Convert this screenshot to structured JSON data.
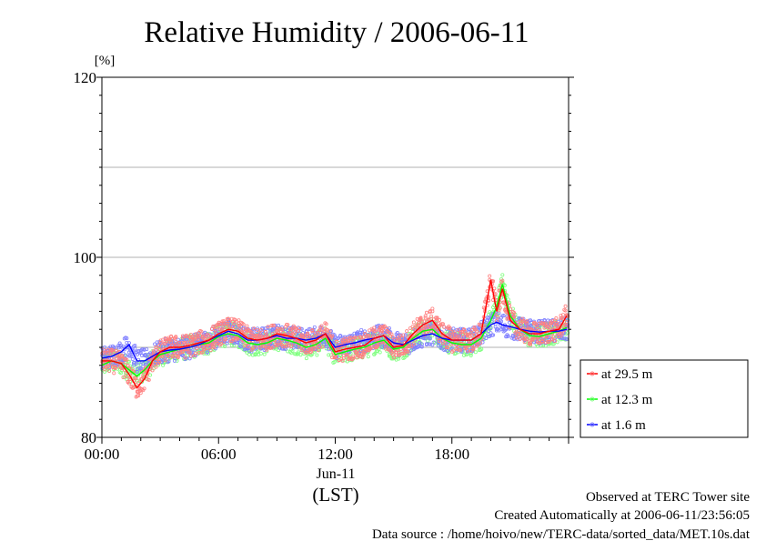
{
  "chart_data": {
    "type": "line",
    "title": "Relative Humidity / 2006-06-11",
    "y_unit": "[%]",
    "ylim": [
      80,
      120
    ],
    "y_ticks": [
      {
        "value": 80,
        "label": "80"
      },
      {
        "value": 100,
        "label": "100"
      },
      {
        "value": 120,
        "label": "120"
      }
    ],
    "y_gridlines": [
      90,
      100,
      110
    ],
    "xlim": [
      0,
      24
    ],
    "x_ticks": [
      {
        "value": 0,
        "label": "00:00"
      },
      {
        "value": 6,
        "label": "06:00"
      },
      {
        "value": 12,
        "label": "12:00"
      },
      {
        "value": 18,
        "label": "18:00"
      }
    ],
    "x_date_label": "Jun-11",
    "x_axis_label": "(LST)",
    "legend_position": "right-bottom",
    "series": [
      {
        "name": "at 29.5 m",
        "color": "#ff0000",
        "scatter_color": "#ff8080",
        "x": [
          0,
          0.5,
          1,
          1.4,
          1.8,
          2.2,
          2.6,
          3,
          3.5,
          4,
          4.5,
          5,
          5.5,
          6,
          6.5,
          7,
          7.5,
          8,
          8.5,
          9,
          9.5,
          10,
          10.5,
          11,
          11.5,
          12,
          12.5,
          13,
          13.5,
          14,
          14.5,
          15,
          15.5,
          16,
          16.5,
          17,
          17.5,
          18,
          18.5,
          19,
          19.5,
          20,
          20.3,
          20.6,
          21,
          21.5,
          22,
          22.5,
          23,
          23.5,
          23.9
        ],
        "y": [
          88.5,
          88.5,
          88.2,
          87,
          85.5,
          86.5,
          88.5,
          89.5,
          90,
          90,
          90.2,
          90.5,
          90.8,
          91.5,
          92,
          91.8,
          91,
          90.8,
          91,
          91.5,
          91.3,
          91,
          90.5,
          90.8,
          91.5,
          89.5,
          89.8,
          90,
          90.2,
          91,
          91.3,
          90,
          90.2,
          91.5,
          92.5,
          93,
          91.5,
          90.8,
          90.8,
          90.8,
          91.5,
          97.5,
          94,
          96.5,
          93,
          92,
          91.5,
          91.5,
          91.8,
          92,
          93.5
        ]
      },
      {
        "name": "at 12.3 m",
        "color": "#00ff00",
        "scatter_color": "#80ff80",
        "x": [
          0,
          0.5,
          1,
          1.4,
          1.8,
          2.2,
          2.6,
          3,
          3.5,
          4,
          4.5,
          5,
          5.5,
          6,
          6.5,
          7,
          7.5,
          8,
          8.5,
          9,
          9.5,
          10,
          10.5,
          11,
          11.5,
          12,
          12.5,
          13,
          13.5,
          14,
          14.5,
          15,
          15.5,
          16,
          16.5,
          17,
          17.5,
          18,
          18.5,
          19,
          19.5,
          20,
          20.3,
          20.6,
          21,
          21.5,
          22,
          22.5,
          23,
          23.5,
          23.9
        ],
        "y": [
          88,
          88.5,
          88.2,
          87.5,
          86.8,
          87.5,
          88.5,
          89.2,
          89.5,
          89.8,
          90,
          90.3,
          90.5,
          91.2,
          91.5,
          91.3,
          90.5,
          90.3,
          90.5,
          91,
          90.8,
          90.5,
          90,
          90.3,
          91,
          89.2,
          89.5,
          89.8,
          90,
          90.5,
          90.8,
          89.8,
          90,
          91,
          91.8,
          92,
          91,
          90.5,
          90.3,
          90.3,
          91,
          93,
          94.5,
          97,
          93.5,
          92,
          91.3,
          91.2,
          91.5,
          91.8,
          92.2
        ]
      },
      {
        "name": "at 1.6 m",
        "color": "#0000ff",
        "scatter_color": "#8080ff",
        "x": [
          0,
          0.5,
          1,
          1.4,
          1.8,
          2.2,
          2.6,
          3,
          3.5,
          4,
          4.5,
          5,
          5.5,
          6,
          6.5,
          7,
          7.5,
          8,
          8.5,
          9,
          9.5,
          10,
          10.5,
          11,
          11.5,
          12,
          12.5,
          13,
          13.5,
          14,
          14.5,
          15,
          15.5,
          16,
          16.5,
          17,
          17.5,
          18,
          18.5,
          19,
          19.5,
          20,
          20.3,
          20.6,
          21,
          21.5,
          22,
          22.5,
          23,
          23.5,
          23.9
        ],
        "y": [
          88.8,
          89,
          89.5,
          90.3,
          88.5,
          88.5,
          89,
          89.5,
          89.7,
          89.8,
          90,
          90.3,
          90.8,
          91.3,
          91.8,
          91.5,
          90.8,
          90.8,
          91,
          91.3,
          91,
          91,
          90.8,
          91,
          91.5,
          90,
          90.3,
          90.5,
          90.8,
          91,
          91.3,
          90.5,
          90.3,
          90.8,
          91.3,
          91.5,
          91,
          90.8,
          90.8,
          90.8,
          91.5,
          92.5,
          92.8,
          92.5,
          92.3,
          92,
          91.8,
          91.7,
          91.8,
          91.8,
          92
        ]
      }
    ]
  },
  "footer": {
    "line1": "Observed at TERC Tower site",
    "line2": "Created Automatically at 2006-06-11/23:56:05",
    "line3": "Data source : /home/hoivo/new/TERC-data/sorted_data/MET.10s.dat"
  }
}
